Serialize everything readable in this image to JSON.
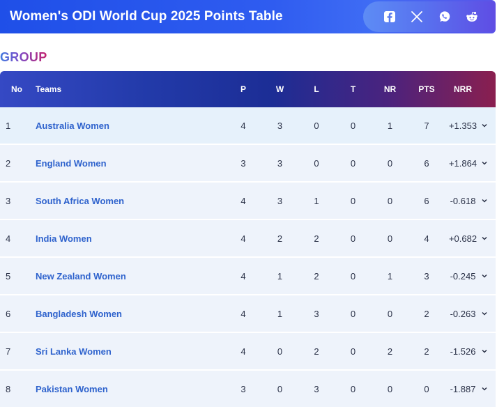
{
  "header": {
    "title": "Women's ODI World Cup 2025 Points Table",
    "share_icons": [
      "facebook-icon",
      "x-icon",
      "whatsapp-icon",
      "reddit-icon"
    ]
  },
  "group": {
    "label": "GROUP"
  },
  "table": {
    "columns": {
      "no": "No",
      "team": "Teams",
      "p": "P",
      "w": "W",
      "l": "L",
      "t": "T",
      "nr": "NR",
      "pts": "PTS",
      "nrr": "NRR"
    },
    "rows": [
      {
        "no": "1",
        "team": "Australia Women",
        "p": "4",
        "w": "3",
        "l": "0",
        "t": "0",
        "nr": "1",
        "pts": "7",
        "nrr": "+1.353"
      },
      {
        "no": "2",
        "team": "England Women",
        "p": "3",
        "w": "3",
        "l": "0",
        "t": "0",
        "nr": "0",
        "pts": "6",
        "nrr": "+1.864"
      },
      {
        "no": "3",
        "team": "South Africa Women",
        "p": "4",
        "w": "3",
        "l": "1",
        "t": "0",
        "nr": "0",
        "pts": "6",
        "nrr": "-0.618"
      },
      {
        "no": "4",
        "team": "India Women",
        "p": "4",
        "w": "2",
        "l": "2",
        "t": "0",
        "nr": "0",
        "pts": "4",
        "nrr": "+0.682"
      },
      {
        "no": "5",
        "team": "New Zealand Women",
        "p": "4",
        "w": "1",
        "l": "2",
        "t": "0",
        "nr": "1",
        "pts": "3",
        "nrr": "-0.245"
      },
      {
        "no": "6",
        "team": "Bangladesh Women",
        "p": "4",
        "w": "1",
        "l": "3",
        "t": "0",
        "nr": "0",
        "pts": "2",
        "nrr": "-0.263"
      },
      {
        "no": "7",
        "team": "Sri Lanka Women",
        "p": "4",
        "w": "0",
        "l": "2",
        "t": "0",
        "nr": "2",
        "pts": "2",
        "nrr": "-1.526"
      },
      {
        "no": "8",
        "team": "Pakistan Women",
        "p": "3",
        "w": "0",
        "l": "3",
        "t": "0",
        "nr": "0",
        "pts": "0",
        "nrr": "-1.887"
      }
    ]
  },
  "colors": {
    "header_blue": "#1f4fe8",
    "team_link": "#2f63cd",
    "row_alt": "#e6f1fb",
    "row_base": "#eef3fb"
  }
}
